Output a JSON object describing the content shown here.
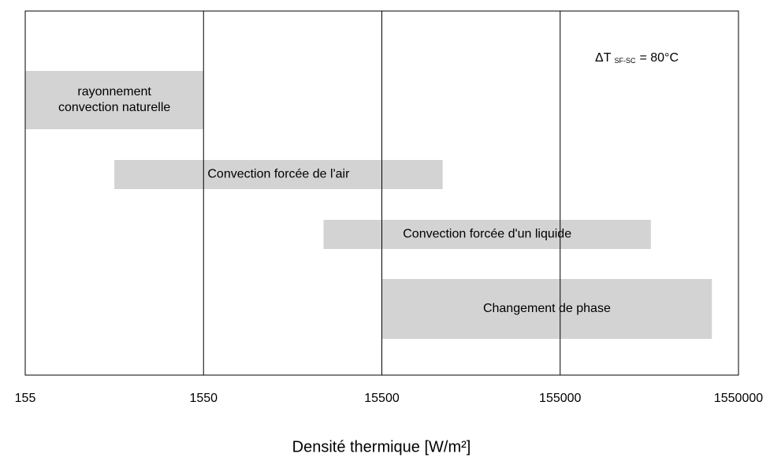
{
  "chart_data": {
    "type": "range_bar",
    "xlabel": "Densité thermique [W/m²]",
    "annotation": {
      "text": "ΔT",
      "subscript": "SF-SC",
      "suffix": "= 80°C"
    },
    "categories": [
      [
        "rayonnement",
        "convection naturelle"
      ],
      [
        "Convection forcée de l'air"
      ],
      [
        "Convection forcée d'un liquide"
      ],
      [
        "Changement de phase"
      ]
    ],
    "low": [
      155,
      490,
      7300,
      15500
    ],
    "high": [
      1550,
      34000,
      500000,
      1100000
    ],
    "color": "#d3d3d3",
    "xscale": "log",
    "xlim": [
      155,
      1550000
    ],
    "xticks": [
      155,
      1550,
      15500,
      155000,
      1550000
    ],
    "grid": true
  }
}
